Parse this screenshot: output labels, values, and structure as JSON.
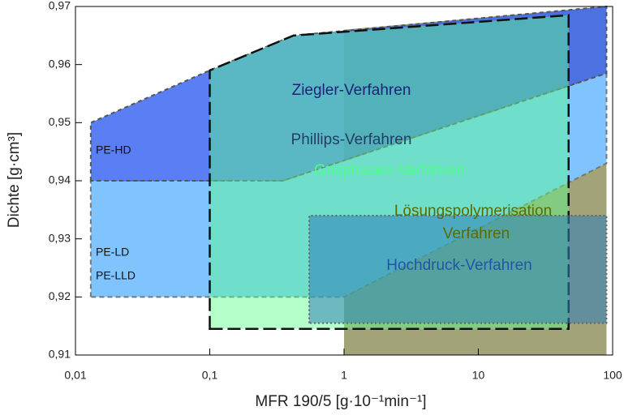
{
  "chart_data": {
    "type": "area",
    "xlabel": "MFR 190/5 [g·10⁻¹min⁻¹]",
    "ylabel": "Dichte [g·cm³]",
    "xscale": "log",
    "xlim": [
      0.01,
      100
    ],
    "xticks": [
      {
        "value": 0.01,
        "label": "0,01"
      },
      {
        "value": 0.1,
        "label": "0,1"
      },
      {
        "value": 1,
        "label": "1"
      },
      {
        "value": 10,
        "label": "10"
      },
      {
        "value": 100,
        "label": "100"
      }
    ],
    "ylim": [
      0.91,
      0.97
    ],
    "yticks": [
      {
        "value": 0.91,
        "label": "0,91"
      },
      {
        "value": 0.92,
        "label": "0,92"
      },
      {
        "value": 0.93,
        "label": "0,93"
      },
      {
        "value": 0.94,
        "label": "0,94"
      },
      {
        "value": 0.95,
        "label": "0,95"
      },
      {
        "value": 0.96,
        "label": "0,96"
      },
      {
        "value": 0.97,
        "label": "0,97"
      }
    ],
    "regions": [
      {
        "color": "#a3a37a",
        "opacity": 1,
        "x": [
          1,
          1,
          90,
          90
        ],
        "y": [
          0.91,
          0.966,
          0.97,
          0.91
        ]
      },
      {
        "color": "#80c4ff",
        "opacity": 1,
        "x": [
          0.013,
          0.013,
          0.35,
          90,
          90,
          1
        ],
        "y": [
          0.92,
          0.94,
          0.94,
          0.9585,
          0.943,
          0.92
        ]
      },
      {
        "color": "#3d68f2",
        "opacity": 0.85,
        "x": [
          0.013,
          0.013,
          0.1,
          0.42,
          90,
          90,
          0.35
        ],
        "y": [
          0.94,
          0.95,
          0.959,
          0.965,
          0.97,
          0.9585,
          0.94
        ]
      },
      {
        "color": "#5cff8a",
        "opacity": 0.45,
        "x": [
          0.1,
          0.1,
          0.42,
          47,
          47
        ],
        "y": [
          0.9145,
          0.959,
          0.965,
          0.9685,
          0.9145
        ]
      },
      {
        "color": "#2f7fb8",
        "opacity": 0.55,
        "x": [
          0.55,
          0.55,
          90,
          90
        ],
        "y": [
          0.9155,
          0.934,
          0.934,
          0.9155
        ]
      }
    ],
    "annotations": [
      {
        "text": "Ziegler-Verfahren",
        "color": "#1c237a"
      },
      {
        "text": "Phillips-Verfahren",
        "color": "#1f3f66"
      },
      {
        "text": "Gasphasen-Verfahren",
        "color": "#4dff88"
      },
      {
        "text": "Lösungspolymerisation",
        "color": "#5a6b00"
      },
      {
        "text": "Verfahren",
        "color": "#5a6b00"
      },
      {
        "text": "Hochdruck-Verfahren",
        "color": "#2255aa"
      },
      {
        "text": "PE-HD",
        "color": "#111111"
      },
      {
        "text": "PE-LD",
        "color": "#111111"
      },
      {
        "text": "PE-LLD",
        "color": "#111111"
      }
    ]
  }
}
